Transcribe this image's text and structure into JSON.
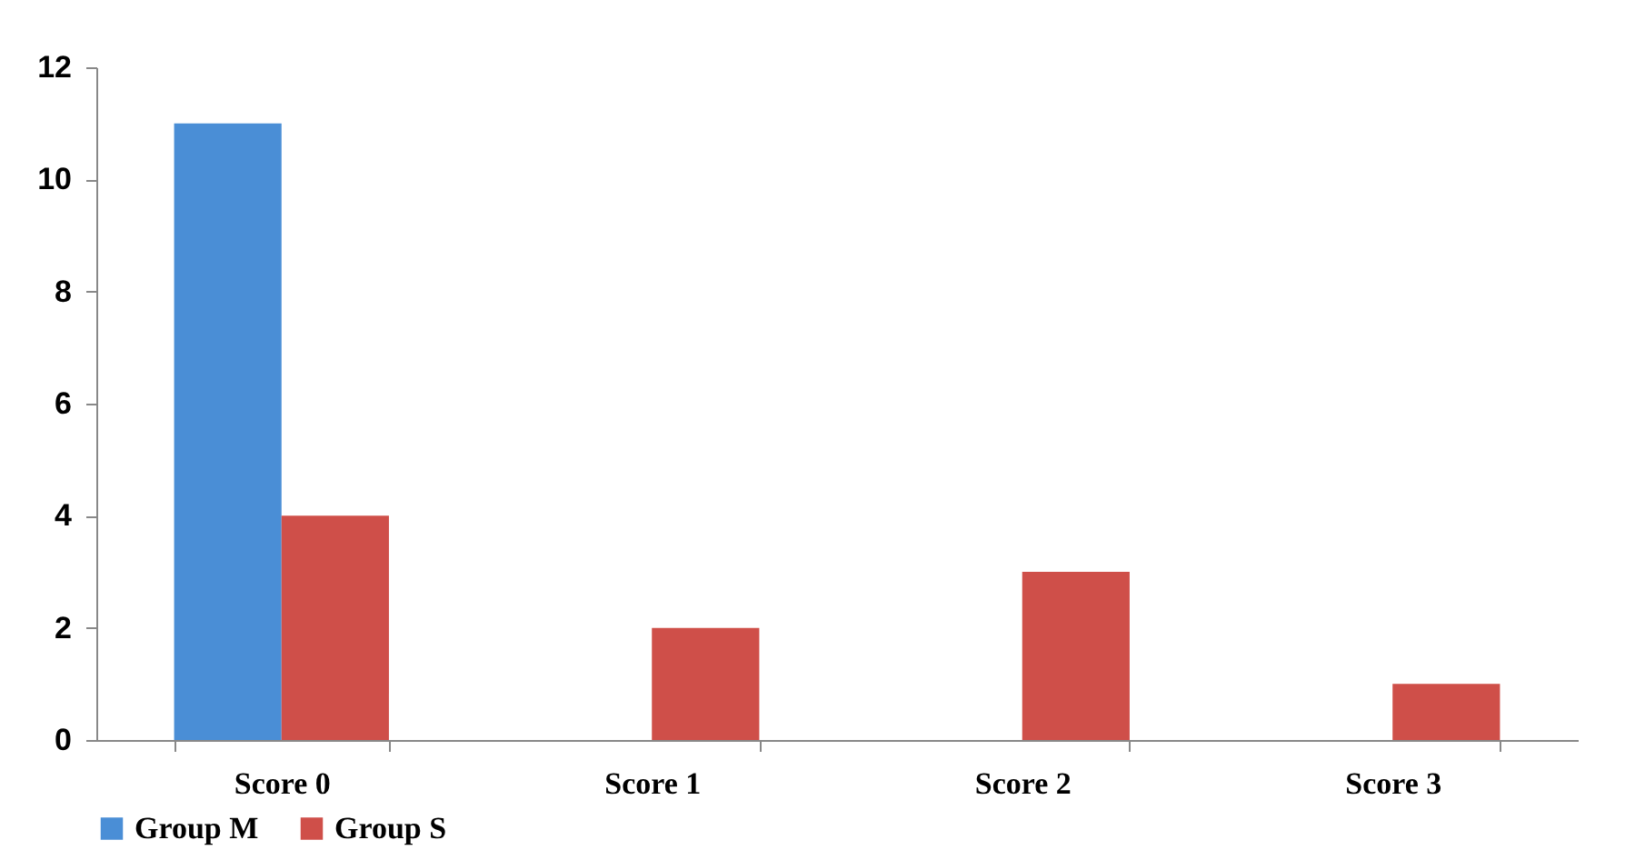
{
  "chart_data": {
    "type": "bar",
    "categories": [
      "Score 0",
      "Score 1",
      "Score 2",
      "Score 3"
    ],
    "series": [
      {
        "name": "Group M",
        "color": "#4a8ed6",
        "values": [
          11,
          0,
          0,
          0
        ]
      },
      {
        "name": "Group S",
        "color": "#cf4f49",
        "values": [
          4,
          2,
          3,
          1
        ]
      }
    ],
    "ylim": [
      0,
      12
    ],
    "yticks": [
      0,
      2,
      4,
      6,
      8,
      10,
      12
    ],
    "grid": false,
    "legend": "bottom"
  }
}
